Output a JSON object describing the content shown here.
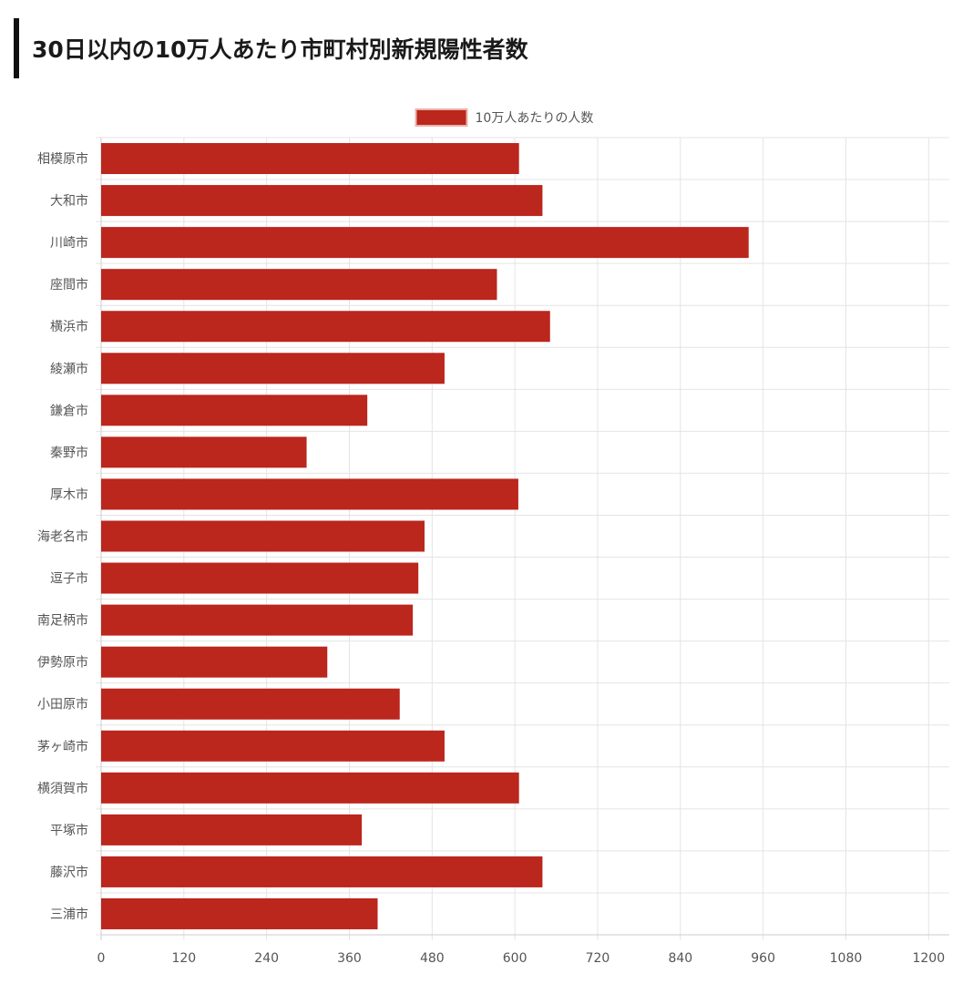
{
  "page": {
    "title": "30日以内の10万人あたり市町村別新規陽性者数"
  },
  "colors": {
    "bar": "#bb261d",
    "grid": "#e4e4e4",
    "axis": "#cccccc",
    "text": "#555555"
  },
  "chart_data": {
    "type": "bar",
    "orientation": "horizontal",
    "title": "",
    "xlabel": "",
    "ylabel": "",
    "legend": {
      "position": "top-center"
    },
    "grid": true,
    "xlim": [
      0,
      1230
    ],
    "ticks": [
      0,
      120,
      240,
      360,
      480,
      600,
      720,
      840,
      960,
      1080,
      1200
    ],
    "categories": [
      "相模原市",
      "大和市",
      "川崎市",
      "座間市",
      "横浜市",
      "綾瀬市",
      "鎌倉市",
      "秦野市",
      "厚木市",
      "海老名市",
      "逗子市",
      "南足柄市",
      "伊勢原市",
      "小田原市",
      "茅ヶ崎市",
      "横須賀市",
      "平塚市",
      "藤沢市",
      "三浦市"
    ],
    "series": [
      {
        "name": "10万人あたりの人数",
        "values": [
          606,
          640,
          939,
          574,
          651,
          498,
          386,
          298,
          605,
          469,
          460,
          452,
          328,
          433,
          498,
          606,
          378,
          640,
          401
        ]
      }
    ]
  }
}
